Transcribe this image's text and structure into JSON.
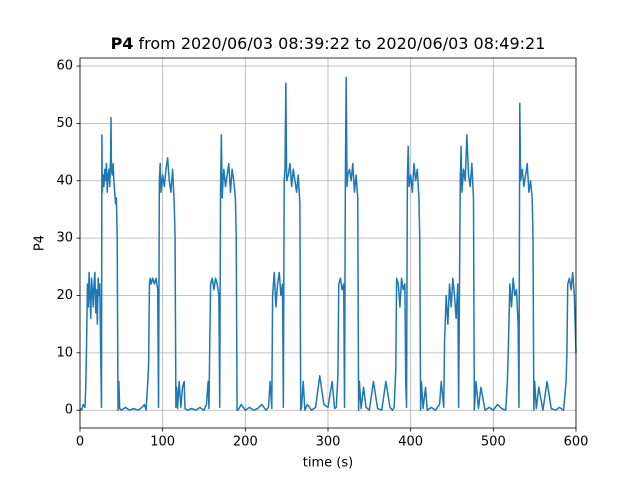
{
  "chart_data": {
    "type": "line",
    "title_bold": "P4",
    "title": "from 2020/06/03 08:39:22 to 2020/06/03 08:49:21",
    "xlabel": "time (s)",
    "ylabel": "P4",
    "xlim": [
      0,
      600
    ],
    "xticks": [
      0,
      100,
      200,
      300,
      400,
      500,
      600
    ],
    "ylim": [
      -3.1,
      61.4
    ],
    "yticks": [
      0,
      10,
      20,
      30,
      40,
      50,
      60
    ],
    "grid": true,
    "color": "#1f77b4",
    "x": [
      0,
      2,
      4,
      6,
      7,
      8,
      9,
      10,
      11,
      12,
      13,
      14,
      15,
      16,
      17,
      18,
      19,
      20,
      21,
      22,
      23,
      24,
      25,
      26,
      26.5,
      27,
      28,
      29,
      30,
      31,
      32,
      33,
      34,
      35,
      36,
      37,
      37.5,
      38,
      39,
      40,
      41,
      42,
      43,
      44,
      45,
      46,
      47,
      48,
      50,
      55,
      60,
      65,
      70,
      75,
      78,
      80,
      82,
      83,
      84,
      85,
      86,
      88,
      90,
      92,
      94,
      95,
      96,
      97,
      98,
      100,
      102,
      104,
      106,
      108,
      110,
      112,
      114,
      115,
      116,
      117,
      118,
      120,
      122,
      124,
      126,
      127,
      130,
      135,
      140,
      145,
      150,
      153,
      155,
      156,
      157,
      158,
      160,
      162,
      164,
      166,
      168,
      169,
      170,
      171,
      172,
      173,
      174,
      176,
      178,
      180,
      182,
      184,
      186,
      188,
      189,
      190,
      191,
      193,
      195,
      200,
      205,
      210,
      215,
      220,
      225,
      228,
      230,
      232,
      233,
      235,
      237,
      239,
      241,
      243,
      245,
      246,
      247,
      248,
      249,
      250,
      252,
      254,
      256,
      258,
      260,
      262,
      264,
      266,
      267,
      268,
      270,
      272,
      275,
      280,
      285,
      290,
      295,
      300,
      305,
      308,
      310,
      312,
      313,
      315,
      317,
      319,
      320,
      321,
      322,
      323,
      324,
      326,
      328,
      330,
      332,
      334,
      336,
      337,
      338,
      340,
      343,
      346,
      350,
      355,
      360,
      365,
      370,
      375,
      378,
      380,
      382,
      383,
      385,
      387,
      389,
      391,
      393,
      394,
      395,
      396,
      397,
      398,
      400,
      402,
      404,
      406,
      408,
      410,
      411,
      412,
      413,
      415,
      418,
      420,
      425,
      430,
      435,
      437,
      440,
      441,
      443,
      445,
      447,
      449,
      451,
      453,
      455,
      457,
      458,
      460,
      461,
      462,
      464,
      466,
      468,
      470,
      472,
      474,
      476,
      477,
      479,
      482,
      485,
      490,
      495,
      500,
      505,
      510,
      515,
      517,
      518,
      520,
      522,
      524,
      526,
      528,
      530,
      531,
      532,
      533,
      535,
      537,
      539,
      541,
      543,
      545,
      547,
      548,
      549,
      550,
      552,
      555,
      560,
      565,
      570,
      575,
      580,
      585,
      588,
      589,
      590,
      592,
      594,
      596,
      598,
      600
    ],
    "values": [
      0.3,
      0,
      1,
      0.5,
      4,
      12,
      22,
      18,
      24,
      20,
      16,
      23,
      21,
      18,
      22,
      24,
      17,
      21,
      15,
      23,
      20,
      22,
      10,
      0.5,
      48,
      38,
      41,
      39,
      42,
      40,
      43,
      38,
      41,
      42,
      39,
      44,
      51,
      42,
      41,
      43,
      40,
      38,
      36,
      37,
      30,
      0,
      5,
      0.3,
      0,
      0.5,
      0,
      0.3,
      0,
      0.5,
      1,
      0,
      5,
      8,
      22,
      23,
      22,
      23,
      22,
      23,
      21,
      0.5,
      40,
      43,
      38,
      41,
      39,
      42,
      44,
      40,
      38,
      42,
      36,
      30,
      0.5,
      4,
      0.3,
      5,
      0.5,
      4,
      5,
      0.3,
      0,
      0.3,
      0,
      0.5,
      0,
      1,
      5,
      0.3,
      12,
      22,
      23,
      21,
      23,
      22,
      20,
      0.5,
      38,
      48,
      37,
      40,
      42,
      39,
      41,
      43,
      38,
      42,
      40,
      37,
      30,
      0,
      0,
      0.5,
      1,
      0,
      0.5,
      0,
      0.3,
      1,
      0,
      0.5,
      5,
      0.3,
      20,
      24,
      18,
      22,
      24,
      20,
      22,
      0.5,
      40,
      42,
      57,
      40,
      41,
      43,
      39,
      42,
      40,
      38,
      41,
      36,
      0,
      0.5,
      5,
      0,
      1,
      0,
      0.5,
      6,
      1,
      0.5,
      5,
      0.3,
      0.5,
      6,
      22,
      23,
      21,
      22,
      0.5,
      40,
      58,
      39,
      41,
      42,
      40,
      43,
      38,
      41,
      37,
      0,
      5,
      0.3,
      4,
      0.5,
      0,
      5,
      0.3,
      0,
      5,
      0.5,
      0,
      0.5,
      7,
      23,
      22,
      18,
      23,
      21,
      22,
      5,
      0.5,
      40,
      46,
      39,
      41,
      38,
      43,
      40,
      42,
      37,
      30,
      0,
      5,
      0.3,
      4,
      0,
      0.5,
      0,
      1,
      5,
      0.5,
      12,
      20,
      15,
      22,
      18,
      23,
      20,
      16,
      22,
      0.5,
      40,
      46,
      38,
      42,
      40,
      48,
      41,
      39,
      43,
      37,
      0,
      5,
      0.3,
      4,
      0,
      0.5,
      0,
      1,
      0.3,
      0,
      5,
      10,
      22,
      18,
      23,
      20,
      21,
      15,
      0.5,
      53.5,
      40,
      42,
      39,
      41,
      43,
      38,
      40,
      37,
      30,
      0,
      5,
      0.3,
      4,
      0,
      5,
      0.3,
      0,
      0.5,
      0,
      5,
      10,
      22,
      23,
      21,
      24,
      20,
      10
    ]
  }
}
